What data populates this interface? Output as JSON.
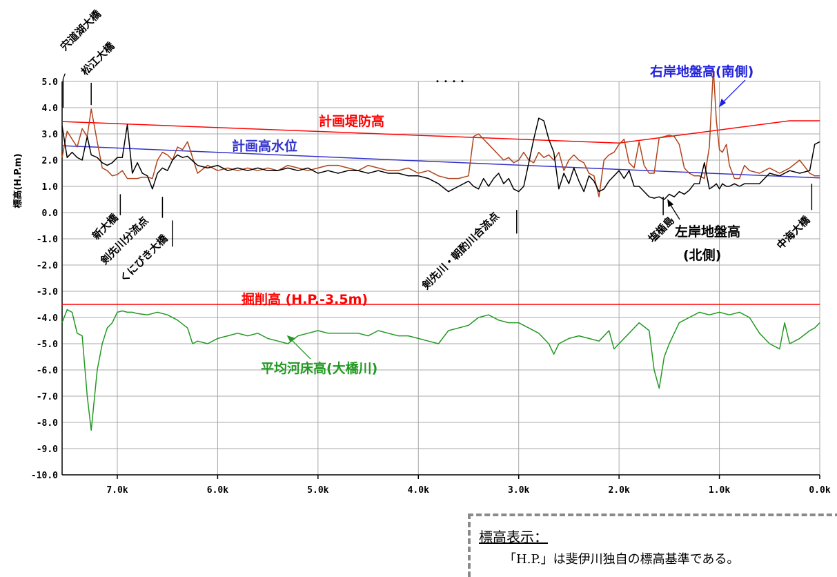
{
  "chart_data": {
    "type": "line",
    "ylabel": "標高(H.P.m)",
    "xlim": [
      7.55,
      0.0
    ],
    "ylim": [
      -10.0,
      5.0
    ],
    "x_ticks": [
      7.0,
      6.0,
      5.0,
      4.0,
      3.0,
      2.0,
      1.0,
      0.0
    ],
    "x_tick_labels": [
      "7.0k",
      "6.0k",
      "5.0k",
      "4.0k",
      "3.0k",
      "2.0k",
      "1.0k",
      "0.0k"
    ],
    "y_ticks": [
      5,
      4,
      3,
      2,
      1,
      0,
      -1,
      -2,
      -3,
      -4,
      -5,
      -6,
      -7,
      -8,
      -9,
      -10
    ],
    "y_tick_labels": [
      "5.0",
      "4.0",
      "3.0",
      "2.0",
      "1.0",
      "0.0",
      "-1.0",
      "-2.0",
      "-3.0",
      "-4.0",
      "-5.0",
      "-6.0",
      "-7.0",
      "-8.0",
      "-9.0",
      "-10.0"
    ],
    "grid": true,
    "series": [
      {
        "name": "計画堤防高",
        "color": "#ff0000",
        "x": [
          7.55,
          2.0,
          0.3,
          0.0
        ],
        "y": [
          3.47,
          2.65,
          3.5,
          3.5
        ]
      },
      {
        "name": "計画高水位",
        "color": "#3333cc",
        "x": [
          7.55,
          0.0
        ],
        "y": [
          2.55,
          1.32
        ]
      },
      {
        "name": "掘削高 (H.P.-3.5m)",
        "color": "#ff0000",
        "x": [
          7.55,
          0.0
        ],
        "y": [
          -3.5,
          -3.5
        ]
      },
      {
        "name": "右岸地盤高(南側)",
        "color": "#b0421a",
        "x": [
          7.55,
          7.5,
          7.45,
          7.4,
          7.35,
          7.3,
          7.26,
          7.2,
          7.15,
          7.1,
          7.05,
          7.0,
          6.95,
          6.9,
          6.85,
          6.8,
          6.75,
          6.7,
          6.65,
          6.6,
          6.55,
          6.5,
          6.45,
          6.4,
          6.35,
          6.3,
          6.2,
          6.1,
          6.0,
          5.9,
          5.8,
          5.7,
          5.6,
          5.5,
          5.4,
          5.3,
          5.2,
          5.1,
          5.0,
          4.9,
          4.8,
          4.7,
          4.6,
          4.5,
          4.4,
          4.3,
          4.2,
          4.1,
          4.0,
          3.9,
          3.8,
          3.7,
          3.6,
          3.5,
          3.45,
          3.4,
          3.35,
          3.3,
          3.25,
          3.2,
          3.15,
          3.1,
          3.05,
          3.0,
          2.95,
          2.9,
          2.85,
          2.8,
          2.75,
          2.7,
          2.65,
          2.6,
          2.55,
          2.5,
          2.45,
          2.4,
          2.35,
          2.3,
          2.25,
          2.2,
          2.15,
          2.1,
          2.05,
          2.0,
          1.95,
          1.9,
          1.85,
          1.8,
          1.75,
          1.7,
          1.65,
          1.6,
          1.55,
          1.5,
          1.45,
          1.4,
          1.35,
          1.3,
          1.25,
          1.2,
          1.15,
          1.1,
          1.06,
          1.03,
          1.0,
          0.97,
          0.93,
          0.9,
          0.85,
          0.8,
          0.75,
          0.7,
          0.6,
          0.5,
          0.4,
          0.3,
          0.2,
          0.1,
          0.05,
          0.0
        ],
        "y": [
          2.1,
          3.1,
          2.8,
          2.5,
          3.2,
          2.9,
          3.95,
          2.7,
          1.7,
          1.6,
          1.4,
          1.45,
          1.6,
          1.3,
          1.3,
          1.3,
          1.35,
          1.35,
          1.3,
          2.0,
          2.3,
          2.2,
          2.0,
          2.5,
          2.4,
          2.7,
          1.5,
          1.8,
          1.6,
          1.7,
          1.6,
          1.7,
          1.6,
          1.7,
          1.6,
          1.8,
          1.7,
          1.6,
          1.7,
          1.8,
          1.8,
          1.7,
          1.6,
          1.8,
          1.7,
          1.6,
          1.6,
          1.7,
          1.5,
          1.6,
          1.4,
          1.3,
          1.3,
          1.4,
          2.9,
          3.0,
          2.8,
          2.6,
          2.4,
          2.2,
          2.0,
          2.1,
          1.9,
          2.0,
          2.3,
          2.0,
          1.9,
          2.3,
          2.1,
          2.2,
          2.0,
          2.3,
          1.6,
          2.0,
          2.2,
          2.0,
          1.9,
          1.5,
          1.4,
          0.6,
          2.0,
          2.2,
          2.3,
          2.6,
          2.8,
          1.9,
          1.7,
          2.7,
          1.8,
          1.5,
          1.5,
          2.85,
          2.9,
          2.95,
          2.9,
          2.6,
          1.7,
          1.5,
          1.4,
          1.4,
          1.3,
          2.5,
          5.5,
          3.5,
          2.4,
          2.3,
          2.6,
          1.8,
          1.3,
          1.3,
          1.8,
          1.6,
          1.5,
          1.7,
          1.5,
          1.7,
          2.0,
          1.5,
          1.4,
          1.4
        ]
      },
      {
        "name": "左岸地盤高(北側)",
        "color": "#000000",
        "x": [
          7.55,
          7.5,
          7.45,
          7.4,
          7.35,
          7.3,
          7.26,
          7.2,
          7.15,
          7.1,
          7.05,
          7.0,
          6.95,
          6.9,
          6.85,
          6.8,
          6.75,
          6.7,
          6.65,
          6.6,
          6.55,
          6.5,
          6.45,
          6.4,
          6.35,
          6.3,
          6.2,
          6.1,
          6.0,
          5.9,
          5.8,
          5.7,
          5.6,
          5.5,
          5.4,
          5.3,
          5.2,
          5.1,
          5.0,
          4.9,
          4.8,
          4.7,
          4.6,
          4.5,
          4.4,
          4.3,
          4.2,
          4.1,
          4.0,
          3.9,
          3.8,
          3.7,
          3.6,
          3.5,
          3.45,
          3.4,
          3.35,
          3.3,
          3.25,
          3.2,
          3.15,
          3.1,
          3.05,
          3.0,
          2.95,
          2.9,
          2.85,
          2.8,
          2.75,
          2.7,
          2.65,
          2.6,
          2.55,
          2.5,
          2.45,
          2.4,
          2.35,
          2.3,
          2.25,
          2.2,
          2.15,
          2.1,
          2.05,
          2.0,
          1.95,
          1.9,
          1.85,
          1.8,
          1.75,
          1.7,
          1.65,
          1.6,
          1.55,
          1.5,
          1.45,
          1.4,
          1.35,
          1.3,
          1.25,
          1.2,
          1.15,
          1.1,
          1.06,
          1.03,
          1.0,
          0.97,
          0.93,
          0.9,
          0.85,
          0.8,
          0.75,
          0.7,
          0.6,
          0.5,
          0.4,
          0.3,
          0.2,
          0.1,
          0.05,
          0.0
        ],
        "y": [
          3.3,
          2.1,
          2.3,
          2.1,
          2.0,
          2.9,
          2.2,
          2.1,
          1.9,
          1.8,
          1.9,
          2.1,
          2.1,
          3.35,
          1.5,
          1.9,
          1.5,
          1.4,
          0.9,
          1.5,
          1.7,
          1.6,
          2.0,
          2.2,
          2.1,
          2.15,
          1.8,
          1.7,
          1.8,
          1.6,
          1.7,
          1.6,
          1.7,
          1.6,
          1.6,
          1.7,
          1.6,
          1.7,
          1.5,
          1.6,
          1.5,
          1.6,
          1.6,
          1.5,
          1.6,
          1.5,
          1.5,
          1.4,
          1.4,
          1.3,
          1.1,
          0.8,
          1.0,
          1.2,
          1.0,
          0.9,
          1.3,
          1.0,
          1.3,
          1.5,
          1.1,
          1.3,
          0.9,
          0.8,
          1.0,
          1.9,
          2.8,
          3.6,
          3.5,
          2.8,
          2.3,
          0.9,
          1.5,
          1.1,
          1.7,
          1.2,
          0.8,
          1.4,
          1.2,
          0.8,
          0.9,
          1.2,
          1.4,
          1.6,
          1.3,
          1.6,
          1.0,
          1.0,
          0.8,
          0.6,
          0.55,
          0.6,
          0.5,
          0.7,
          0.6,
          0.8,
          0.7,
          0.85,
          1.1,
          1.1,
          1.9,
          0.9,
          1.0,
          1.1,
          0.9,
          1.1,
          1.0,
          1.0,
          1.1,
          1.0,
          1.1,
          1.1,
          1.1,
          1.5,
          1.4,
          1.6,
          1.5,
          1.6,
          2.6,
          2.7
        ]
      },
      {
        "name": "平均河床高(大橋川)",
        "color": "#229922",
        "x": [
          7.55,
          7.5,
          7.45,
          7.4,
          7.35,
          7.3,
          7.26,
          7.2,
          7.15,
          7.1,
          7.05,
          7.0,
          6.95,
          6.9,
          6.85,
          6.8,
          6.7,
          6.6,
          6.5,
          6.4,
          6.3,
          6.25,
          6.2,
          6.1,
          6.0,
          5.9,
          5.8,
          5.7,
          5.6,
          5.5,
          5.4,
          5.3,
          5.2,
          5.1,
          5.0,
          4.9,
          4.8,
          4.7,
          4.6,
          4.5,
          4.4,
          4.3,
          4.2,
          4.1,
          4.0,
          3.9,
          3.8,
          3.7,
          3.6,
          3.5,
          3.4,
          3.3,
          3.2,
          3.1,
          3.0,
          2.9,
          2.8,
          2.7,
          2.65,
          2.6,
          2.5,
          2.4,
          2.3,
          2.2,
          2.1,
          2.05,
          2.0,
          1.9,
          1.8,
          1.7,
          1.65,
          1.6,
          1.55,
          1.5,
          1.45,
          1.4,
          1.3,
          1.2,
          1.1,
          1.0,
          0.9,
          0.8,
          0.7,
          0.6,
          0.5,
          0.4,
          0.35,
          0.3,
          0.2,
          0.1,
          0.05,
          0.0
        ],
        "y": [
          -4.2,
          -3.7,
          -3.8,
          -4.6,
          -4.7,
          -7.0,
          -8.3,
          -6.0,
          -5.0,
          -4.4,
          -4.2,
          -3.8,
          -3.75,
          -3.8,
          -3.8,
          -3.85,
          -3.9,
          -3.8,
          -3.9,
          -4.1,
          -4.4,
          -5.0,
          -4.9,
          -5.0,
          -4.8,
          -4.7,
          -4.6,
          -4.7,
          -4.6,
          -4.8,
          -4.9,
          -5.0,
          -4.7,
          -4.6,
          -4.5,
          -4.6,
          -4.6,
          -4.6,
          -4.6,
          -4.7,
          -4.5,
          -4.6,
          -4.7,
          -4.7,
          -4.8,
          -4.9,
          -5.0,
          -4.5,
          -4.4,
          -4.3,
          -4.0,
          -3.9,
          -4.1,
          -4.2,
          -4.2,
          -4.4,
          -4.6,
          -5.0,
          -5.4,
          -5.0,
          -4.8,
          -4.7,
          -4.8,
          -4.9,
          -4.5,
          -5.2,
          -5.0,
          -4.6,
          -4.2,
          -4.5,
          -6.0,
          -6.7,
          -5.5,
          -5.0,
          -4.6,
          -4.2,
          -4.0,
          -3.8,
          -3.9,
          -3.8,
          -3.9,
          -3.8,
          -4.0,
          -4.6,
          -5.0,
          -5.2,
          -4.2,
          -5.0,
          -4.8,
          -4.5,
          -4.4,
          -4.2
        ]
      }
    ],
    "annotations": [
      "宍道湖大橋",
      "松江大橋",
      "新大橋",
      "剣先川分流点",
      "くにびき大橋",
      "剣先川・朝酌川合流点",
      "塩楯島",
      "中海大橋",
      "・・・・"
    ]
  },
  "labels": {
    "bridge_shinjiko": "宍道湖大橋",
    "bridge_matsue": "松江大橋",
    "bridge_shin": "新大橋",
    "kensaki_branch": "剣先川分流点",
    "bridge_kunibiki": "くにびき大橋",
    "kensaki_confluence": "剣先川・朝酌川合流点",
    "shiodate": "塩楯島",
    "bridge_nakaumi": "中海大橋",
    "dots": "・・・・",
    "levee_plan": "計画堤防高",
    "hwl_plan": "計画高水位",
    "right_bank": "右岸地盤高(南側)",
    "left_bank_1": "左岸地盤高",
    "left_bank_2": "(北側)",
    "excavation": "掘削高 (H.P.-3.5m)",
    "riverbed": "平均河床高(大橋川)"
  },
  "note": {
    "title": "標高表示：",
    "text": "「H.P.」は斐伊川独自の標高基準である。"
  }
}
